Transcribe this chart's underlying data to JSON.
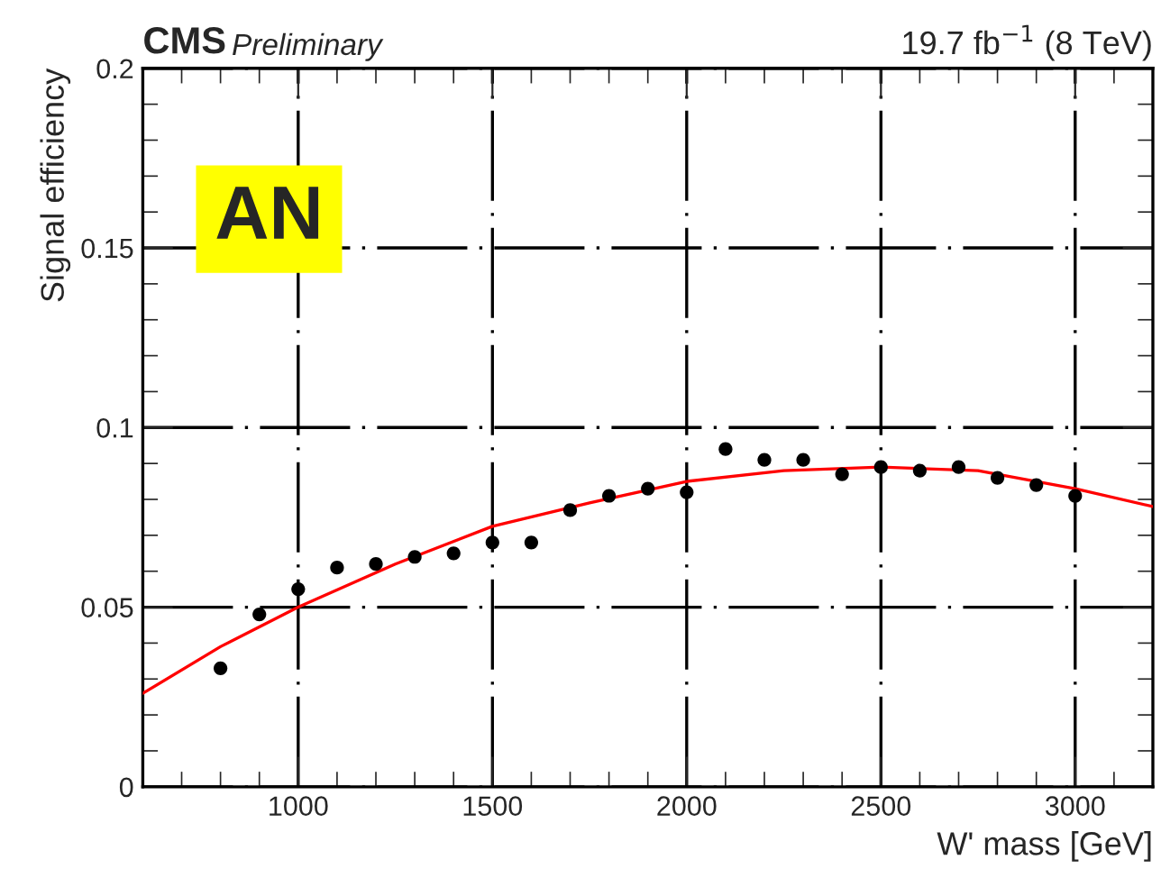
{
  "chart_data": {
    "type": "scatter",
    "title": "CMS",
    "subtitle": "Preliminary",
    "xlabel": "W' mass [GeV]",
    "ylabel": "Signal efficiency",
    "annotations": [
      "19.7 fb$^{−1}$ (8 TeV)",
      "AN"
    ],
    "x": [
      800,
      900,
      1000,
      1100,
      1200,
      1300,
      1400,
      1500,
      1600,
      1700,
      1800,
      1900,
      2000,
      2100,
      2200,
      2300,
      2400,
      2500,
      2600,
      2700,
      2800,
      2900,
      3000
    ],
    "series": [
      {
        "color": "#000000",
        "marker": "circle",
        "values": [
          0.033,
          0.048,
          0.055,
          0.061,
          0.062,
          0.064,
          0.065,
          0.068,
          0.068,
          0.077,
          0.081,
          0.083,
          0.082,
          0.094,
          0.091,
          0.091,
          0.087,
          0.089,
          0.088,
          0.089,
          0.086,
          0.084,
          0.081
        ]
      },
      {
        "type": "line",
        "color": "#ff0000",
        "x": [
          600,
          800,
          1000,
          1250,
          1500,
          1750,
          2000,
          2250,
          2500,
          2750,
          3000,
          3200
        ],
        "values": [
          0.026,
          0.039,
          0.05,
          0.062,
          0.0725,
          0.079,
          0.085,
          0.088,
          0.089,
          0.088,
          0.083,
          0.078
        ]
      }
    ],
    "xlim": [
      600,
      3200
    ],
    "ylim": [
      0,
      0.2
    ],
    "xticks": [
      1000,
      1500,
      2000,
      2500,
      3000
    ],
    "yticks": [
      0,
      0.05,
      0.1,
      0.15,
      0.2
    ],
    "grid": true,
    "legend": false
  }
}
